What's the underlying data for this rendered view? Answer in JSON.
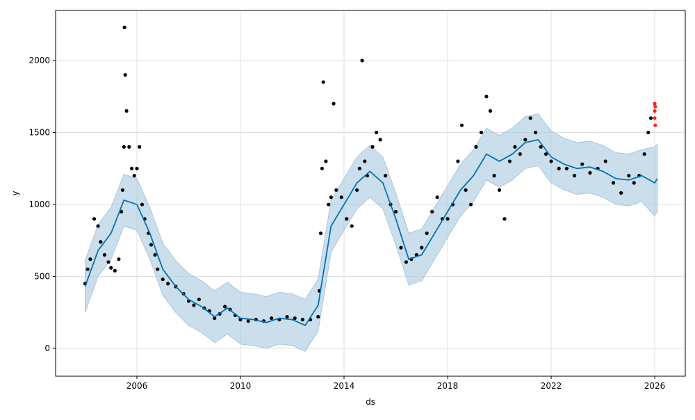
{
  "chart_data": {
    "type": "forecast",
    "x_label": "ds",
    "y_label": "y",
    "xlim": [
      2002.86,
      2027.18
    ],
    "ylim": [
      -193,
      2348
    ],
    "xticks": [
      2006,
      2010,
      2014,
      2018,
      2022,
      2026
    ],
    "yticks": [
      0,
      500,
      1000,
      1500,
      2000
    ],
    "grid": true,
    "observed": {
      "color": "#000000",
      "x": [
        2004.0,
        2004.1,
        2004.2,
        2004.35,
        2004.5,
        2004.6,
        2004.75,
        2004.9,
        2005.0,
        2005.15,
        2005.3,
        2005.4,
        2005.45,
        2005.5,
        2005.52,
        2005.55,
        2005.6,
        2005.7,
        2005.8,
        2005.9,
        2006.0,
        2006.1,
        2006.2,
        2006.3,
        2006.45,
        2006.55,
        2006.7,
        2006.8,
        2007.0,
        2007.2,
        2007.5,
        2007.8,
        2008.0,
        2008.2,
        2008.4,
        2008.6,
        2008.8,
        2009.0,
        2009.2,
        2009.4,
        2009.6,
        2009.8,
        2010.0,
        2010.3,
        2010.6,
        2010.9,
        2011.2,
        2011.5,
        2011.8,
        2012.1,
        2012.4,
        2012.7,
        2013.0,
        2013.05,
        2013.1,
        2013.15,
        2013.2,
        2013.3,
        2013.4,
        2013.5,
        2013.6,
        2013.7,
        2013.9,
        2014.1,
        2014.3,
        2014.5,
        2014.6,
        2014.7,
        2014.8,
        2014.9,
        2015.1,
        2015.25,
        2015.4,
        2015.6,
        2015.8,
        2016.0,
        2016.2,
        2016.4,
        2016.6,
        2016.8,
        2017.0,
        2017.2,
        2017.4,
        2017.6,
        2017.8,
        2018.0,
        2018.2,
        2018.4,
        2018.55,
        2018.7,
        2018.9,
        2019.1,
        2019.3,
        2019.5,
        2019.65,
        2019.8,
        2020.0,
        2020.2,
        2020.4,
        2020.6,
        2020.8,
        2021.0,
        2021.2,
        2021.4,
        2021.6,
        2021.8,
        2022.0,
        2022.3,
        2022.6,
        2022.9,
        2023.2,
        2023.5,
        2023.8,
        2024.1,
        2024.4,
        2024.7,
        2025.0,
        2025.2,
        2025.4,
        2025.6,
        2025.75,
        2025.85
      ],
      "values": [
        450,
        550,
        620,
        900,
        850,
        740,
        650,
        600,
        560,
        540,
        620,
        950,
        1100,
        1400,
        2230,
        1900,
        1650,
        1400,
        1250,
        1200,
        1250,
        1400,
        1000,
        900,
        800,
        720,
        650,
        550,
        480,
        450,
        430,
        380,
        330,
        300,
        340,
        280,
        260,
        210,
        240,
        290,
        270,
        230,
        200,
        190,
        200,
        190,
        210,
        200,
        220,
        210,
        200,
        200,
        220,
        400,
        800,
        1250,
        1850,
        1300,
        1000,
        1050,
        1700,
        1100,
        1050,
        900,
        850,
        1100,
        1250,
        2000,
        1300,
        1200,
        1400,
        1500,
        1450,
        1200,
        1000,
        950,
        700,
        600,
        620,
        650,
        700,
        800,
        950,
        1050,
        900,
        900,
        1000,
        1300,
        1550,
        1100,
        1000,
        1400,
        1500,
        1750,
        1650,
        1200,
        1100,
        900,
        1300,
        1400,
        1350,
        1450,
        1600,
        1500,
        1400,
        1350,
        1300,
        1250,
        1250,
        1200,
        1280,
        1220,
        1250,
        1300,
        1150,
        1080,
        1200,
        1150,
        1200,
        1350,
        1500,
        1600
      ]
    },
    "recent": {
      "color": "#ff2020",
      "x": [
        2026.0,
        2026.0,
        2026.0,
        2026.02,
        2026.02
      ],
      "values": [
        1600,
        1650,
        1700,
        1550,
        1680
      ]
    },
    "forecast": {
      "color": "#0072B2",
      "band_color": "#a6c8e0",
      "x": [
        2004.0,
        2004.5,
        2005.0,
        2005.5,
        2006.0,
        2006.5,
        2007.0,
        2007.5,
        2008.0,
        2008.5,
        2009.0,
        2009.5,
        2010.0,
        2010.5,
        2011.0,
        2011.5,
        2012.0,
        2012.5,
        2013.0,
        2013.5,
        2014.0,
        2014.5,
        2015.0,
        2015.5,
        2016.0,
        2016.5,
        2017.0,
        2017.5,
        2018.0,
        2018.5,
        2019.0,
        2019.5,
        2020.0,
        2020.5,
        2021.0,
        2021.5,
        2022.0,
        2022.5,
        2023.0,
        2023.5,
        2024.0,
        2024.5,
        2025.0,
        2025.5,
        2026.0,
        2026.1
      ],
      "values": [
        430,
        680,
        800,
        1030,
        1000,
        800,
        550,
        430,
        340,
        290,
        220,
        280,
        210,
        200,
        180,
        210,
        200,
        160,
        300,
        850,
        1000,
        1150,
        1230,
        1150,
        900,
        620,
        650,
        800,
        950,
        1100,
        1200,
        1350,
        1300,
        1350,
        1430,
        1450,
        1330,
        1280,
        1250,
        1260,
        1230,
        1180,
        1170,
        1200,
        1150,
        1180
      ],
      "lower": [
        250,
        500,
        620,
        850,
        820,
        620,
        370,
        250,
        160,
        110,
        40,
        100,
        30,
        20,
        0,
        30,
        20,
        -20,
        120,
        670,
        820,
        970,
        1050,
        970,
        720,
        440,
        470,
        620,
        770,
        920,
        1020,
        1170,
        1120,
        1170,
        1250,
        1270,
        1150,
        1100,
        1070,
        1080,
        1050,
        1000,
        990,
        1020,
        920,
        950
      ],
      "upper": [
        610,
        860,
        980,
        1210,
        1180,
        980,
        730,
        610,
        520,
        470,
        400,
        460,
        390,
        380,
        360,
        390,
        380,
        340,
        480,
        1030,
        1180,
        1330,
        1410,
        1330,
        1080,
        800,
        830,
        980,
        1130,
        1280,
        1380,
        1530,
        1480,
        1530,
        1610,
        1630,
        1510,
        1460,
        1430,
        1440,
        1410,
        1360,
        1350,
        1380,
        1400,
        1420
      ]
    }
  }
}
